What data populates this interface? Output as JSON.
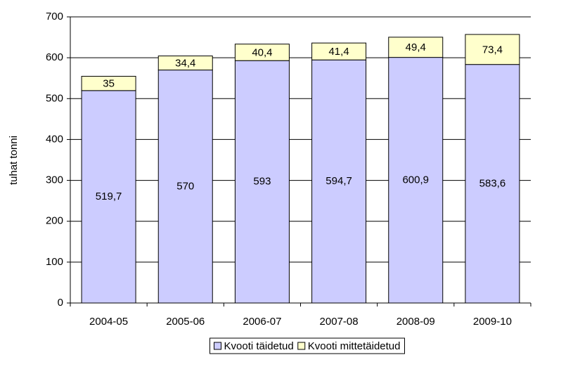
{
  "chart_data": {
    "type": "stacked_bar",
    "y_label": "tuhat tonni",
    "categories": [
      "2004-05",
      "2005-06",
      "2006-07",
      "2007-08",
      "2008-09",
      "2009-10"
    ],
    "series": [
      {
        "name": "Kvooti täidetud",
        "color": "#ccccff",
        "values": [
          519.7,
          570,
          593,
          594.7,
          600.9,
          583.6
        ],
        "value_labels": [
          "519,7",
          "570",
          "593",
          "594,7",
          "600,9",
          "583,6"
        ]
      },
      {
        "name": "Kvooti mittetäidetud",
        "color": "#ffffcc",
        "values": [
          35,
          34.4,
          40.4,
          41.4,
          49.4,
          73.4
        ],
        "value_labels": [
          "35",
          "34,4",
          "40,4",
          "41,4",
          "49,4",
          "73,4"
        ]
      }
    ],
    "ylim": [
      0,
      700
    ],
    "yticks": [
      0,
      100,
      200,
      300,
      400,
      500,
      600,
      700
    ],
    "grid": true,
    "legend": "bottom"
  }
}
